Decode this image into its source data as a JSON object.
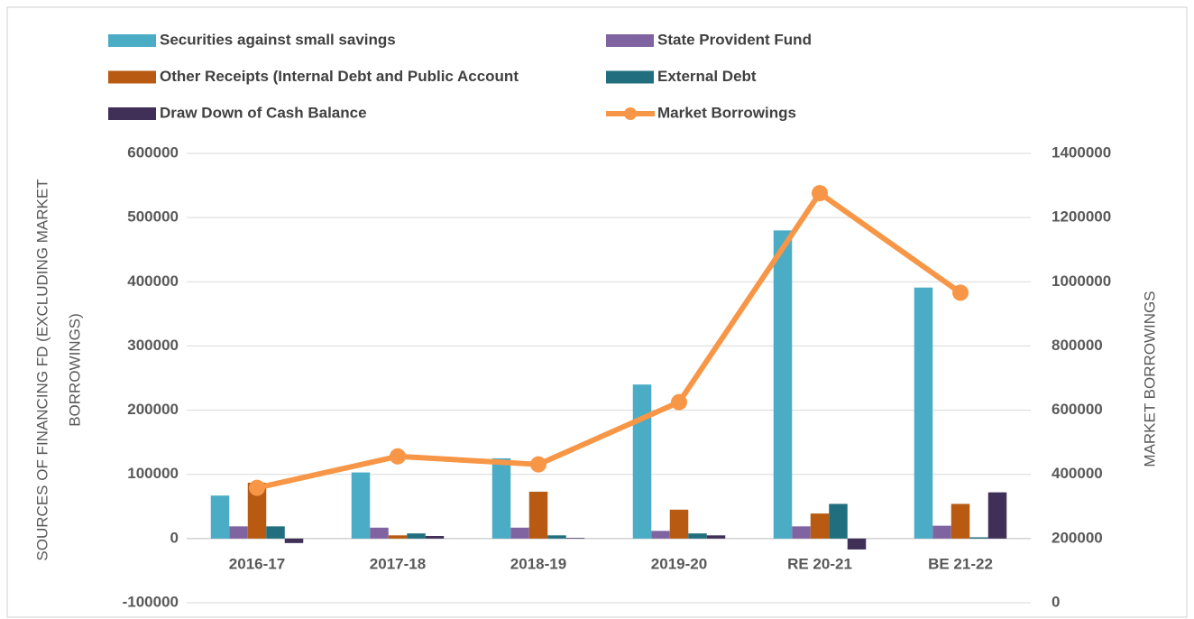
{
  "chart_data": {
    "type": "bar-line",
    "categories": [
      "2016-17",
      "2017-18",
      "2018-19",
      "2019-20",
      "RE 20-21",
      "BE 21-22"
    ],
    "series": [
      {
        "name": "Securities against small savings",
        "color": "#4bacc6",
        "type": "bar",
        "values": [
          67000,
          103000,
          125000,
          240000,
          480000,
          391000
        ]
      },
      {
        "name": "State Provident Fund",
        "color": "#8064a2",
        "type": "bar",
        "values": [
          19000,
          17000,
          17000,
          12000,
          19000,
          20000
        ]
      },
      {
        "name": "Other Receipts (Internal Debt and Public Account",
        "color": "#b85a12",
        "type": "bar",
        "values": [
          87000,
          5000,
          73000,
          45000,
          39000,
          54000
        ]
      },
      {
        "name": "External Debt",
        "color": "#216f7e",
        "type": "bar",
        "values": [
          19000,
          8000,
          5000,
          8000,
          54000,
          2000
        ]
      },
      {
        "name": "Draw Down of Cash Balance",
        "color": "#403058",
        "type": "bar",
        "values": [
          -7000,
          4000,
          1000,
          5000,
          -17000,
          72000
        ]
      },
      {
        "name": "Market Borrowings",
        "color": "#f79646",
        "type": "line",
        "axis": "y2",
        "values": [
          358000,
          456000,
          431000,
          625000,
          1276000,
          966000
        ]
      }
    ],
    "y_label": [
      "SOURCES OF  FINANCING FD (EXCLUDING MARKET",
      "BORROWINGS)"
    ],
    "y2_label": "MARKET BORROWINGS",
    "ylim": [
      -100000,
      600000
    ],
    "yticks": [
      -100000,
      0,
      100000,
      200000,
      300000,
      400000,
      500000,
      600000
    ],
    "y2lim": [
      0,
      1400000
    ],
    "y2ticks": [
      0,
      200000,
      400000,
      600000,
      800000,
      1000000,
      1200000,
      1400000
    ],
    "grid": true,
    "legend": "top"
  }
}
